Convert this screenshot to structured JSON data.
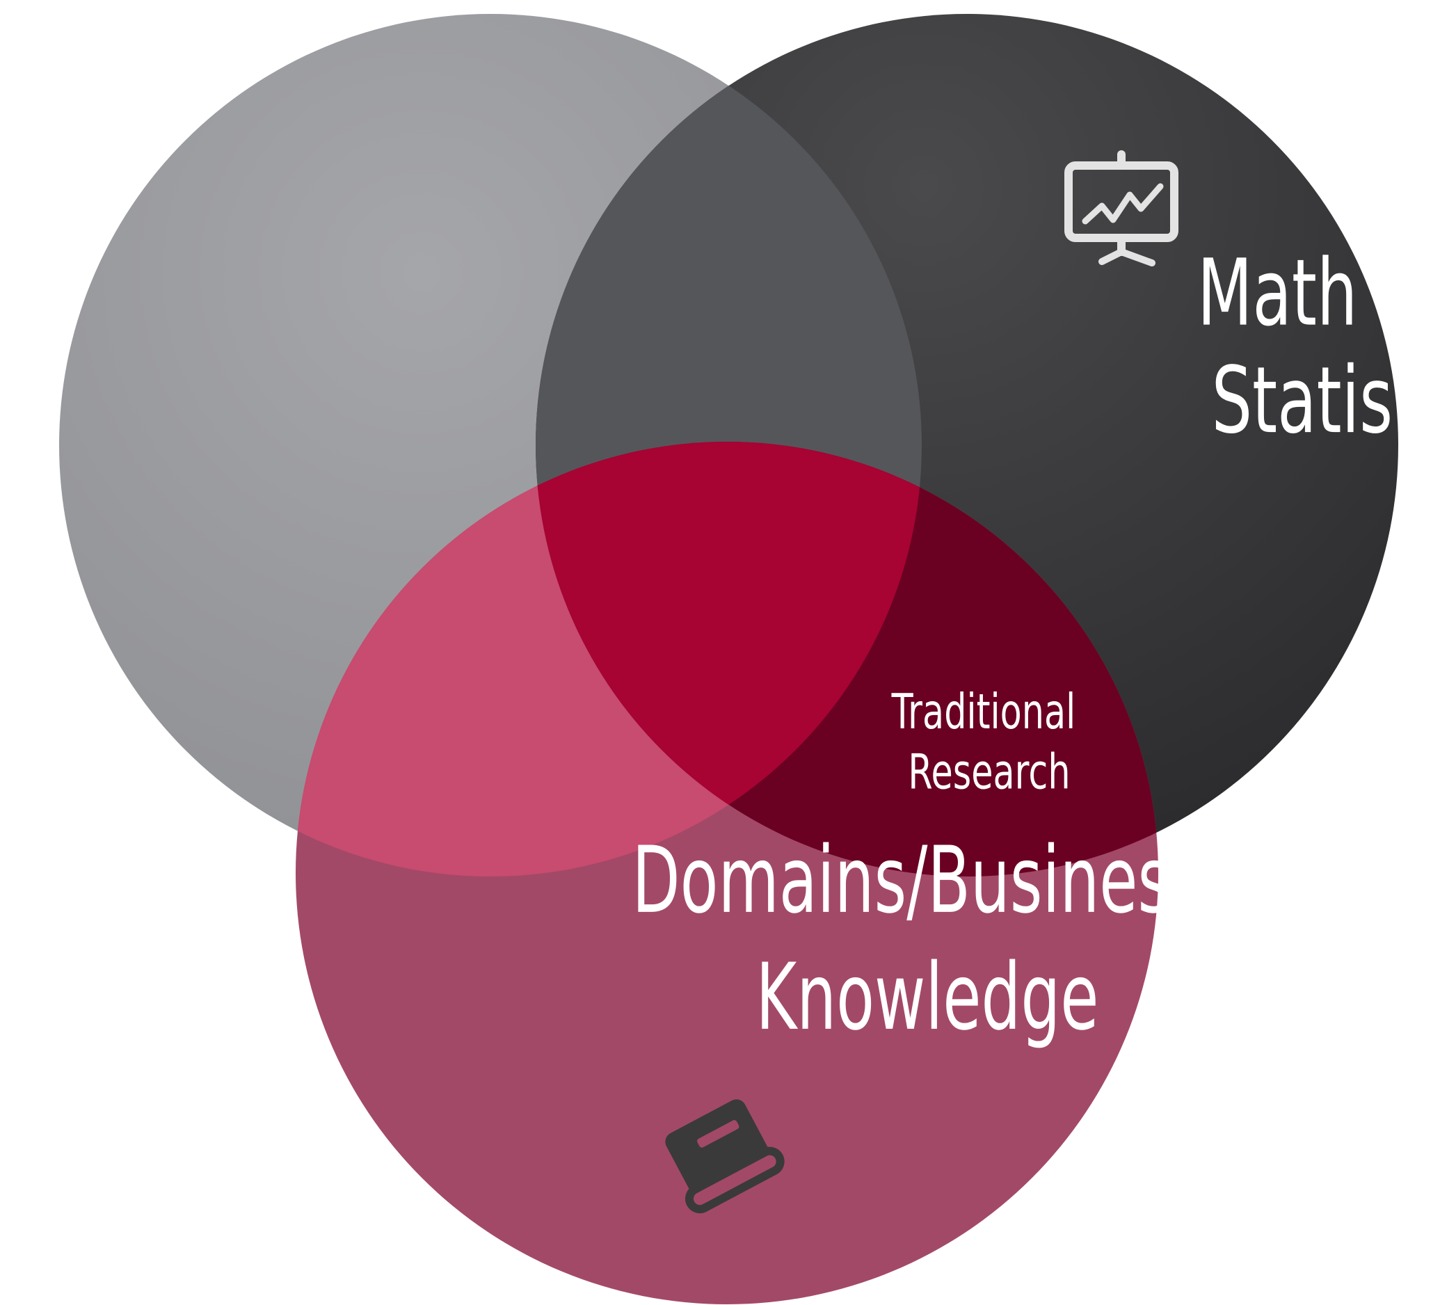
{
  "diagram": {
    "type": "venn",
    "sets": [
      {
        "id": "left",
        "label_lines": [],
        "color": "#8f9094"
      },
      {
        "id": "math",
        "label_lines": [
          "Math and",
          "Statistics"
        ],
        "icon": "presentation-chart-icon",
        "color": "#2e2e30"
      },
      {
        "id": "domain",
        "label_lines": [
          "Domains/Business",
          "Knowledge"
        ],
        "icon": "book-icon",
        "color": "#9b3e5b"
      }
    ],
    "intersections": [
      {
        "sets": [
          "math",
          "domain"
        ],
        "label_lines": [
          "Traditional",
          "Research"
        ]
      }
    ],
    "colors": {
      "left_circle": "#9d9ea2",
      "math_circle": "#333335",
      "domain_circle": "#a34968",
      "left_domain_overlap": "#c84b70",
      "math_domain_overlap": "#6a0122",
      "center_overlap": "#a70333",
      "text": "#ffffff",
      "icon": "#e6e6e6",
      "book": "#3a3a3a"
    }
  }
}
